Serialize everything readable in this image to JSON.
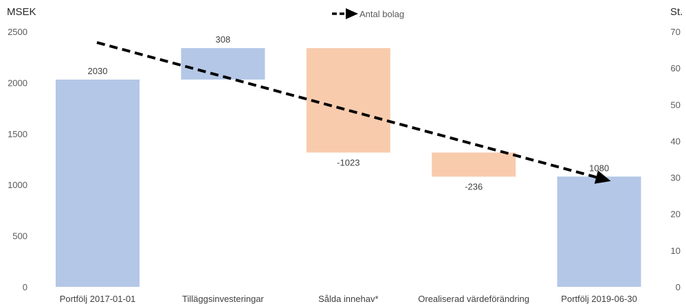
{
  "chart_data": {
    "type": "bar",
    "subtype": "waterfall",
    "categories": [
      "Portfölj 2017-01-01",
      "Tilläggsinvesteringar",
      "Sålda innehav*",
      "Orealiserad värdeförändring",
      "Portfölj 2019-06-30"
    ],
    "values": [
      2030,
      308,
      -1023,
      -236,
      1080
    ],
    "data_labels": [
      "2030",
      "308",
      "-1023",
      "-236",
      "1080"
    ],
    "bar_kinds": [
      "total",
      "increase",
      "decrease",
      "decrease",
      "total"
    ],
    "y_left": {
      "label": "MSEK",
      "range": [
        0,
        2500
      ],
      "ticks": [
        "0",
        "500",
        "1000",
        "1500",
        "2000",
        "2500"
      ]
    },
    "y_right": {
      "label": "St.",
      "range": [
        0,
        70
      ],
      "ticks": [
        "0",
        "10",
        "20",
        "30",
        "40",
        "50",
        "60",
        "70"
      ]
    },
    "line_series": {
      "name": "Antal bolag",
      "style": "dashed-arrow",
      "axis": "right",
      "start": 67,
      "end": 29
    },
    "legend": {
      "position": "top-center",
      "entries": [
        "Antal bolag"
      ]
    },
    "grid": false,
    "colors": {
      "total": "#b4c7e7",
      "increase": "#b4c7e7",
      "decrease": "#f8cbad",
      "line": "#000000"
    }
  }
}
